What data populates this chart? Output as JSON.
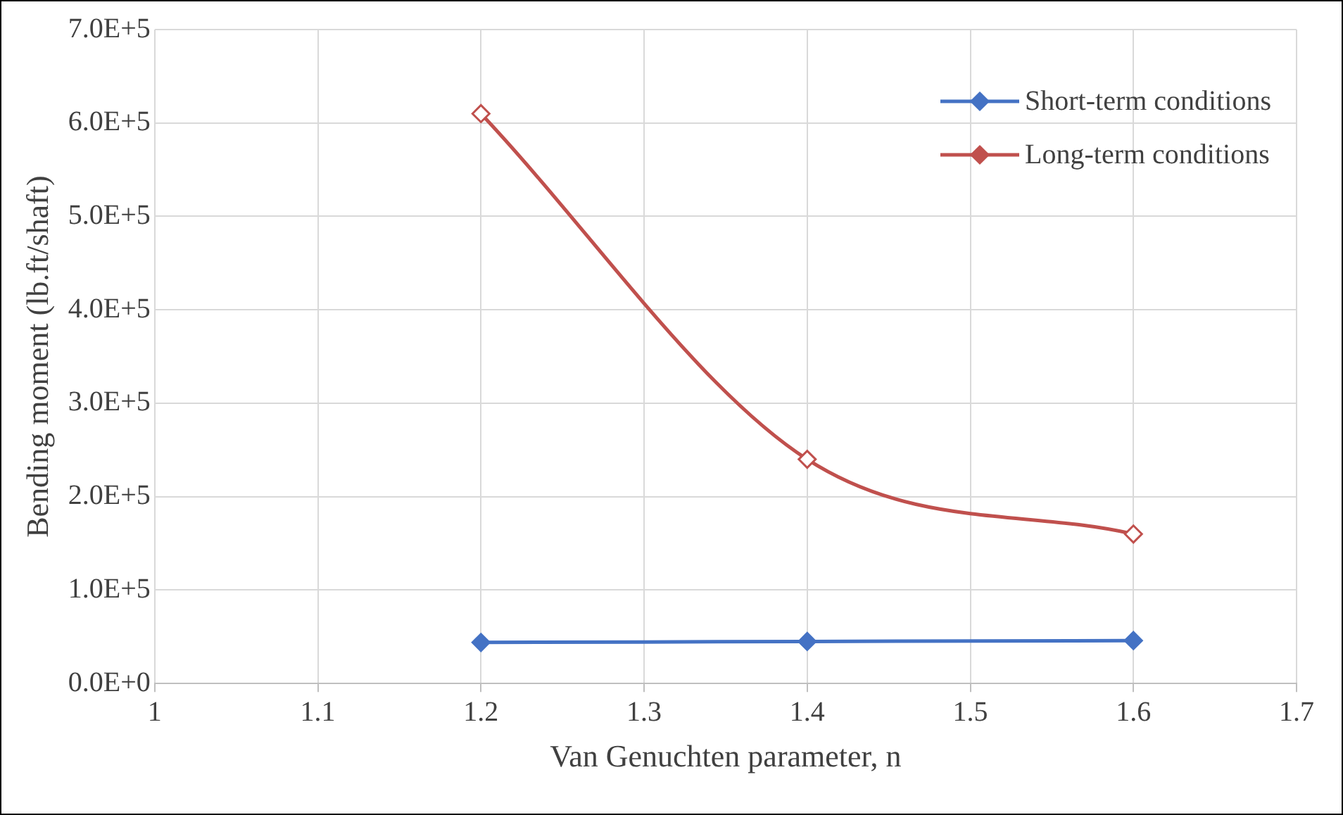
{
  "chart_data": {
    "type": "line",
    "xlabel": "Van Genuchten parameter, n",
    "ylabel": "Bending moment (lb.ft/shaft)",
    "x": [
      1.2,
      1.4,
      1.6
    ],
    "series": [
      {
        "name": "Short-term conditions",
        "color": "#4472c4",
        "values": [
          44000,
          45000,
          46000
        ],
        "marker": "diamond"
      },
      {
        "name": "Long-term conditions",
        "color": "#c0504d",
        "values": [
          610000,
          240000,
          160000
        ],
        "marker": "diamond"
      }
    ],
    "xlim": [
      1,
      1.7
    ],
    "xticks": [
      1,
      1.1,
      1.2,
      1.3,
      1.4,
      1.5,
      1.6,
      1.7
    ],
    "ylim": [
      0,
      700000
    ],
    "yticks": [
      {
        "value": 0,
        "label": "0.0E+0"
      },
      {
        "value": 100000,
        "label": "1.0E+5"
      },
      {
        "value": 200000,
        "label": "2.0E+5"
      },
      {
        "value": 300000,
        "label": "3.0E+5"
      },
      {
        "value": 400000,
        "label": "4.0E+5"
      },
      {
        "value": 500000,
        "label": "5.0E+5"
      },
      {
        "value": 600000,
        "label": "6.0E+5"
      },
      {
        "value": 700000,
        "label": "7.0E+5"
      }
    ],
    "grid": true,
    "legend": "top right"
  }
}
